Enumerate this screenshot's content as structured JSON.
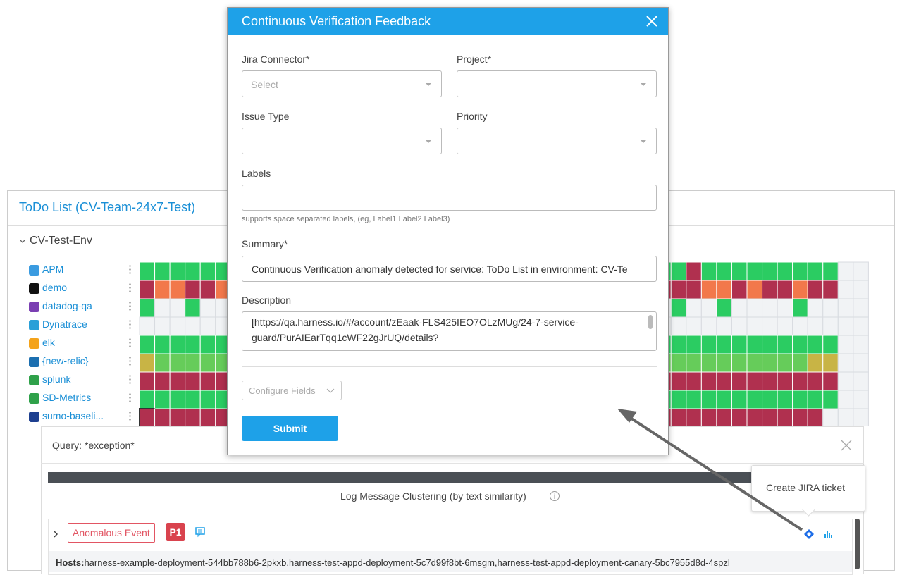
{
  "background": {
    "title": "ToDo List (CV-Team-24x7-Test)",
    "environment": "CV-Test-Env",
    "services": [
      "APM",
      "demo",
      "datadog-qa",
      "Dynatrace",
      "elk",
      "{new-relic}",
      "splunk",
      "SD-Metrics",
      "sumo-baseli..."
    ],
    "query": "Query: *exception*",
    "clustering_title": "Log Message Clustering (by text similarity)",
    "event_tag": "Anomalous Event",
    "priority": "P1",
    "hosts_label": "Hosts:",
    "hosts": "harness-example-deployment-544bb788b6-2pkxb,harness-test-appd-deployment-5c7d99f8bt-6msgm,harness-test-appd-deployment-canary-5bc7955d8d-4spzl",
    "tooltip": "Create JIRA ticket"
  },
  "dialog": {
    "title": "Continuous Verification Feedback",
    "fields": [
      {
        "label": "Jira Connector*",
        "placeholder": "Select"
      },
      {
        "label": "Project*"
      },
      {
        "label": "Issue Type"
      },
      {
        "label": "Priority"
      }
    ],
    "labels_label": "Labels",
    "labels_hint": "supports space separated labels, (eg, Label1 Label2 Label3)",
    "summary_label": "Summary*",
    "summary_value": "Continuous Verification anomaly detected for service: ToDo List in environment: CV-Te",
    "description_label": "Description",
    "description_lines": [
      "[https://qa.harness.io/#/account/zEaak-FLS425IEO7OLzMUg/24-7-service-",
      "guard/PurAIEarTqq1cWF22gJrUQ/details?"
    ],
    "configure_fields": "Configure Fields",
    "submit": "Submit"
  }
}
